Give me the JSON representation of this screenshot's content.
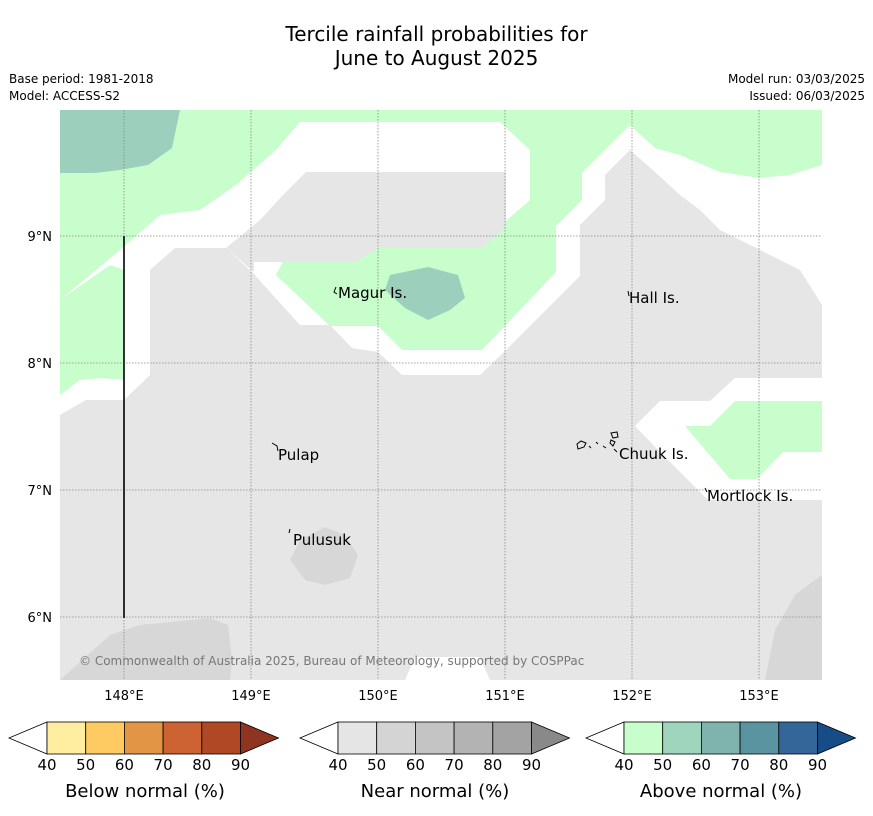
{
  "title": {
    "line1": "Tercile rainfall probabilities for",
    "line2": "June to August 2025"
  },
  "meta": {
    "base_period": "Base period: 1981-2018",
    "model": "Model: ACCESS-S2",
    "model_run": "Model run: 03/03/2025",
    "issued": "Issued: 06/03/2025"
  },
  "axes": {
    "lon_ticks": [
      "148°E",
      "149°E",
      "150°E",
      "151°E",
      "152°E",
      "153°E"
    ],
    "lat_ticks": [
      "9°N",
      "8°N",
      "7°N",
      "6°N"
    ]
  },
  "places": [
    {
      "name": "Magur Is."
    },
    {
      "name": "Hall Is."
    },
    {
      "name": "Pulap"
    },
    {
      "name": "Chuuk Is."
    },
    {
      "name": "Mortlock Is."
    },
    {
      "name": "Pulusuk"
    }
  ],
  "copyright": "© Commonwealth of Australia 2025, Bureau of Meteorology, supported by COSPPac",
  "colorbars": [
    {
      "label": "Below normal (%)",
      "ticks": [
        "40",
        "50",
        "60",
        "70",
        "80",
        "90"
      ],
      "colors": [
        "#ffeda0",
        "#fecb62",
        "#e19545",
        "#cd6233",
        "#b04825",
        "#8e3420"
      ]
    },
    {
      "label": "Near normal (%)",
      "ticks": [
        "40",
        "50",
        "60",
        "70",
        "80",
        "90"
      ],
      "colors": [
        "#e5e5e5",
        "#d4d4d4",
        "#c4c4c4",
        "#b3b3b3",
        "#a3a3a3",
        "#898989"
      ]
    },
    {
      "label": "Above normal (%)",
      "ticks": [
        "40",
        "50",
        "60",
        "70",
        "80",
        "90"
      ],
      "colors": [
        "#c8fdcc",
        "#9fd5bd",
        "#7eb4ad",
        "#5a94a1",
        "#346699",
        "#174d86"
      ]
    }
  ],
  "map_colors": {
    "near40": "#e6e6e6",
    "near50": "#d7d7d7",
    "above40": "#c8fdcc",
    "above50": "#9dd0bc"
  }
}
